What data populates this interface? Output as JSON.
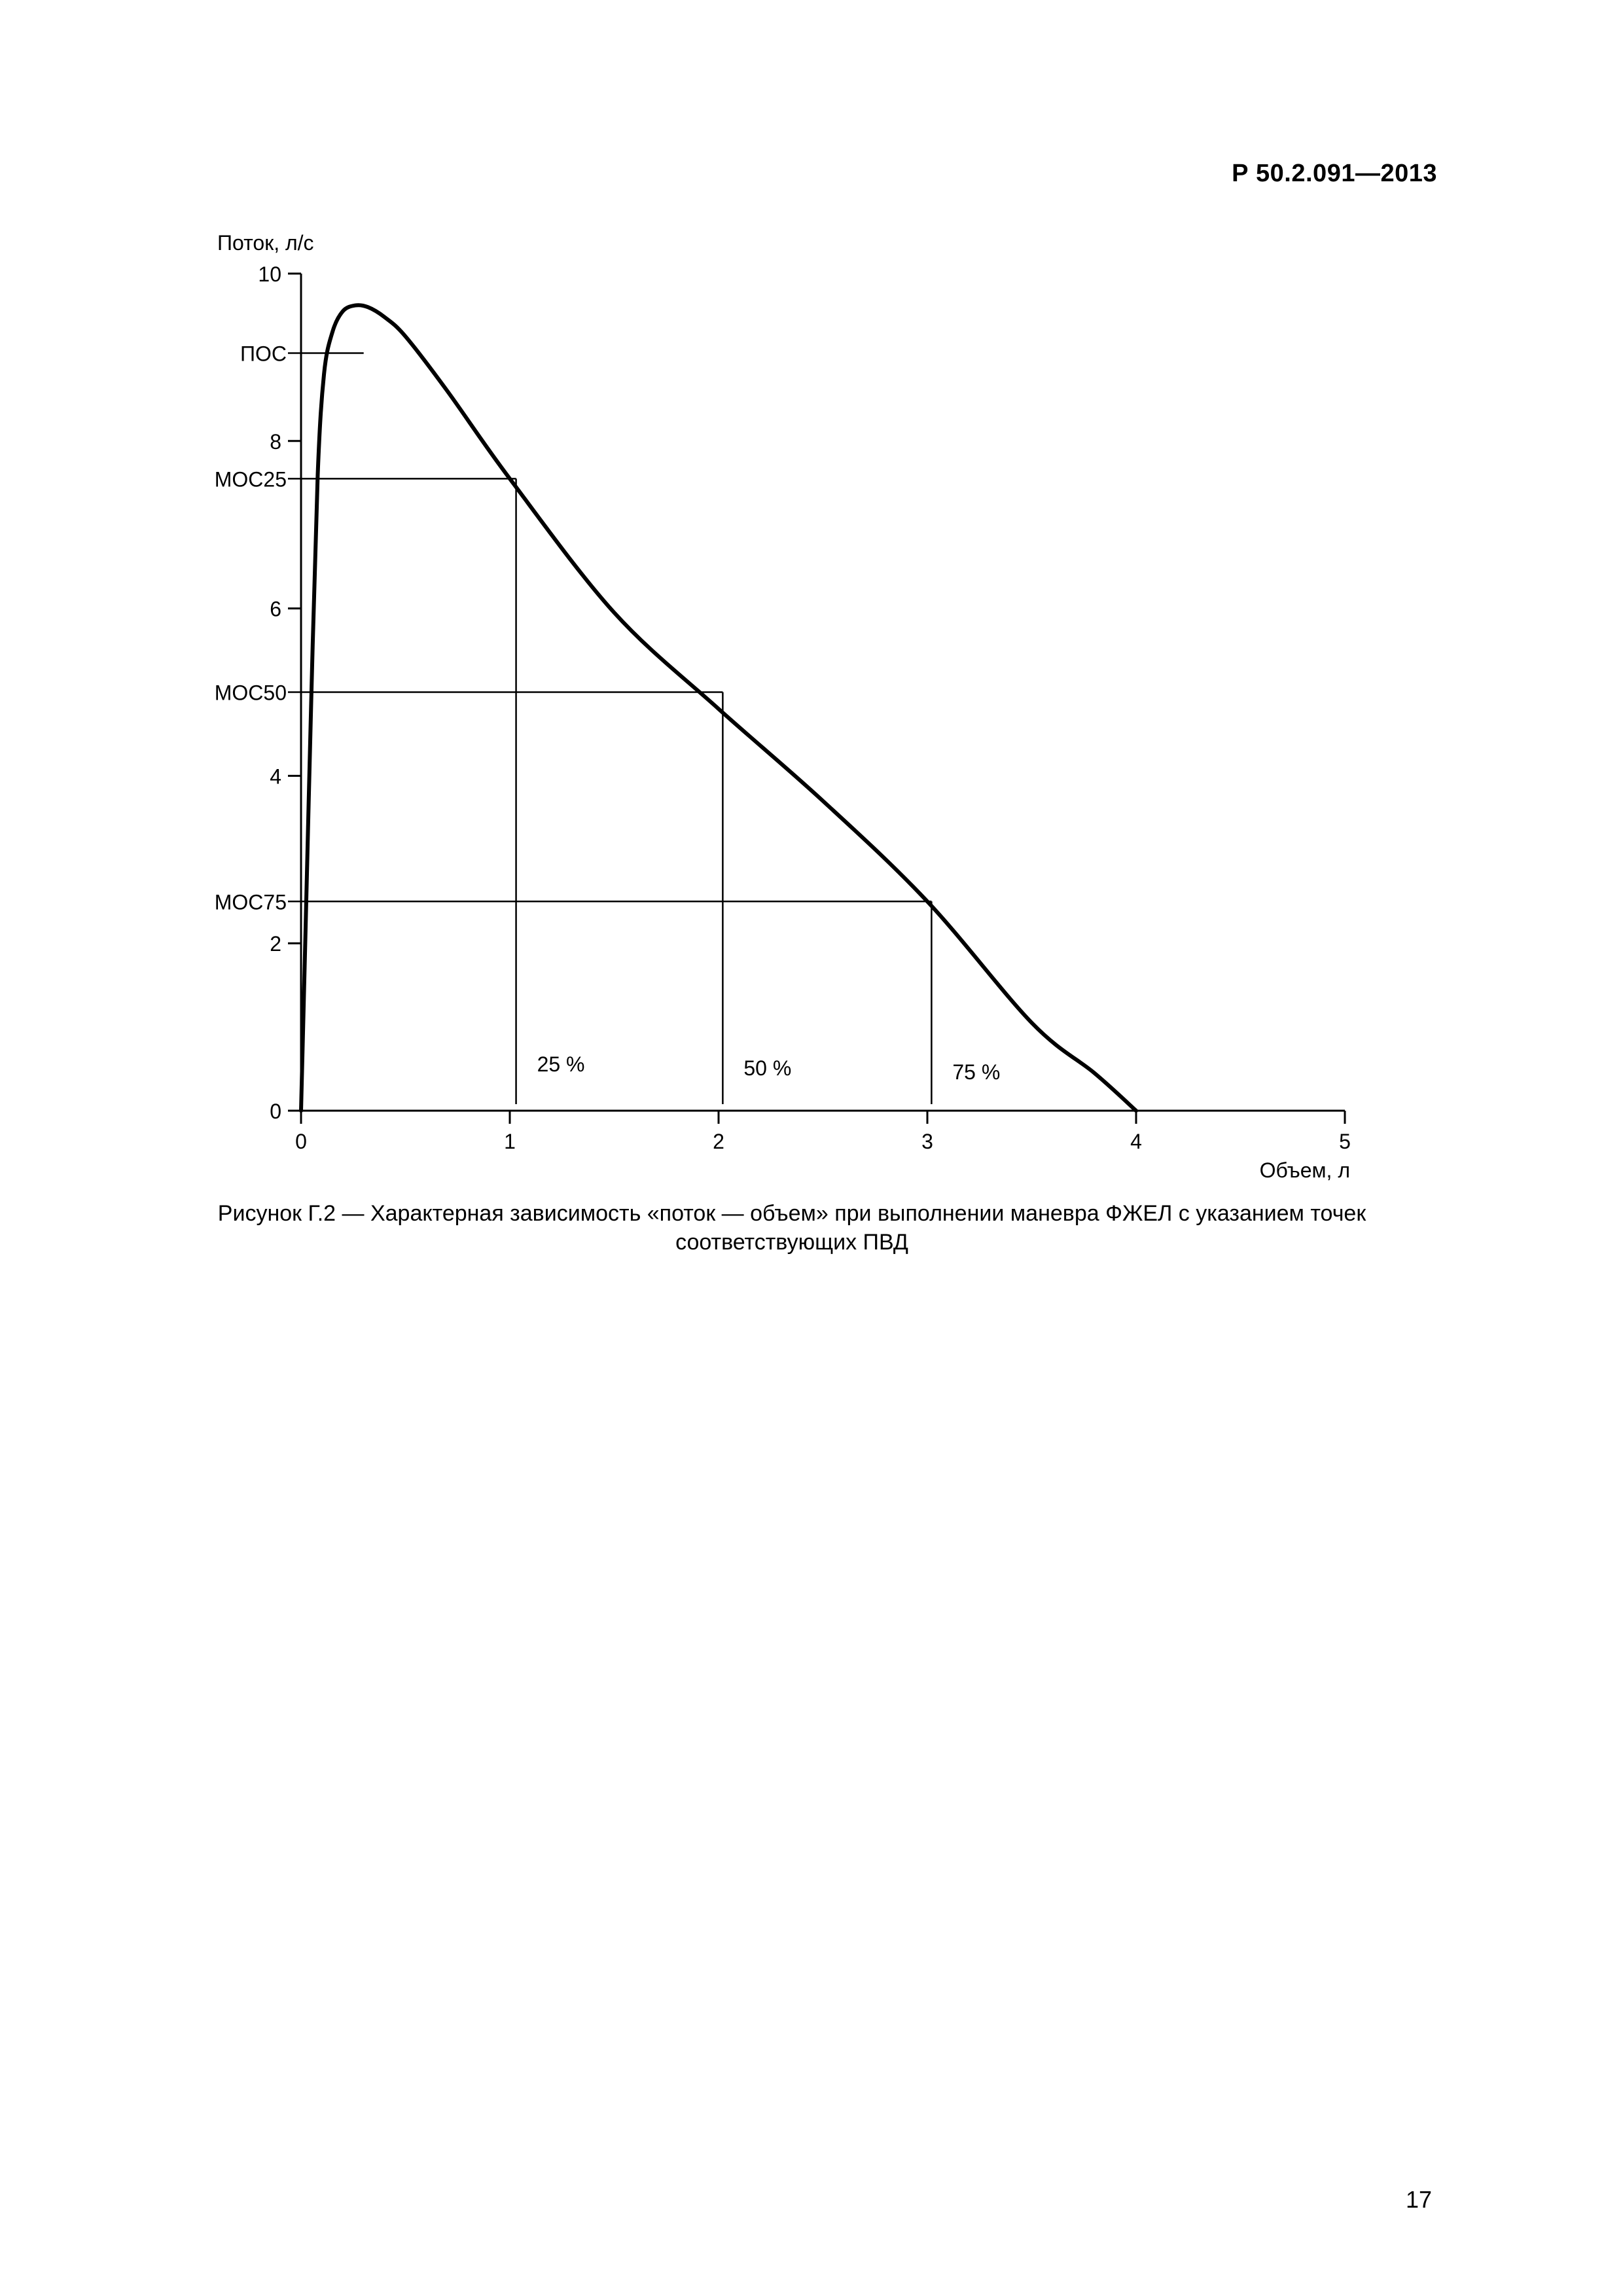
{
  "document": {
    "header": "Р 50.2.091—2013",
    "page_number": "17",
    "caption_line1": "Рисунок Г.2 — Характерная зависимость «поток — объем» при выполнении маневра ФЖЕЛ с указанием точек",
    "caption_line2": "соответствующих ПВД"
  },
  "chart_data": {
    "type": "line",
    "title": "",
    "xlabel": "Объем, л",
    "ylabel": "Поток, л/с",
    "xlim": [
      0,
      5
    ],
    "ylim": [
      0,
      10
    ],
    "x_ticks": [
      0,
      1,
      2,
      3,
      4,
      5
    ],
    "x_tick_labels": [
      "0",
      "1",
      "2",
      "3",
      "4",
      "5"
    ],
    "y_ticks": [
      0,
      2,
      4,
      6,
      8,
      10
    ],
    "y_tick_labels": [
      "0",
      "2",
      "4",
      "6",
      "8",
      "10"
    ],
    "grid": false,
    "legend": "none",
    "series": [
      {
        "x": [
          0.0,
          0.02,
          0.05,
          0.08,
          0.11,
          0.15,
          0.2,
          0.26,
          0.32,
          0.4,
          0.5,
          0.7,
          1.0,
          1.5,
          2.0,
          2.5,
          3.0,
          3.5,
          3.8,
          4.0
        ],
        "y": [
          0.0,
          2.0,
          5.0,
          7.6,
          8.8,
          9.3,
          9.55,
          9.62,
          9.6,
          9.48,
          9.25,
          8.6,
          7.55,
          5.95,
          4.8,
          3.7,
          2.5,
          1.05,
          0.45,
          0.0
        ]
      }
    ],
    "reference_lines": [
      {
        "label": "ПОС",
        "y": 9.05,
        "x_end": 0.3
      },
      {
        "label": "МОС25",
        "y": 7.55,
        "x_end": 1.03
      },
      {
        "label": "МОС50",
        "y": 5.0,
        "x_end": 2.02
      },
      {
        "label": "МОС75",
        "y": 2.5,
        "x_end": 3.02
      }
    ],
    "percent_markers": [
      {
        "label": "25 %",
        "x": 1.03,
        "y_top": 7.55
      },
      {
        "label": "50 %",
        "x": 2.02,
        "y_top": 5.0
      },
      {
        "label": "75 %",
        "x": 3.02,
        "y_top": 2.5
      }
    ]
  }
}
